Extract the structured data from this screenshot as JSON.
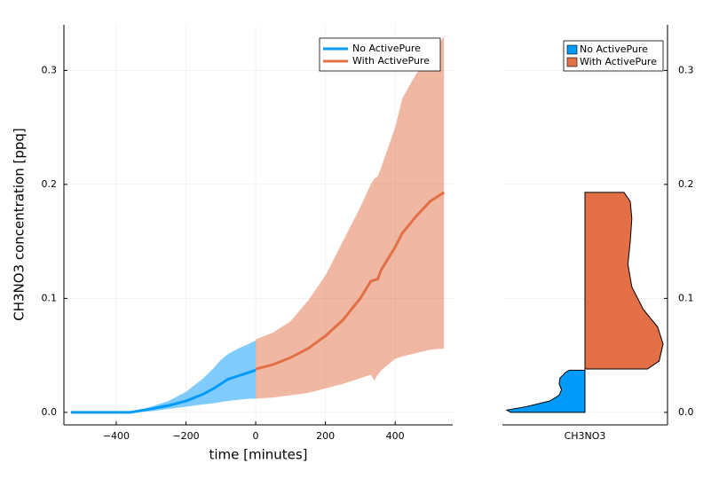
{
  "chart_data": [
    {
      "type": "line",
      "xlabel": "time [minutes]",
      "ylabel": "CH3NO3 concentration [ppq]",
      "xlim": [
        -550,
        565
      ],
      "ylim": [
        -0.011,
        0.34
      ],
      "xticks": [
        {
          "value": -400,
          "label": "−400"
        },
        {
          "value": -200,
          "label": "−200"
        },
        0,
        200,
        400
      ],
      "yticks": [
        {
          "value": 0,
          "label": "0.0"
        },
        0.1,
        0.2,
        0.3
      ],
      "grid": true,
      "legend": "top-right",
      "series": [
        {
          "name": "No ActivePure",
          "color": "#009af9",
          "x": [
            -530,
            -360,
            -300,
            -250,
            -200,
            -150,
            -120,
            -100,
            -80,
            -50,
            -20,
            0
          ],
          "values": [
            0,
            0,
            0.003,
            0.006,
            0.01,
            0.016,
            0.021,
            0.025,
            0.029,
            0.032,
            0.035,
            0.037
          ],
          "upper": [
            0,
            0,
            0.005,
            0.01,
            0.018,
            0.03,
            0.039,
            0.046,
            0.051,
            0.056,
            0.06,
            0.063
          ],
          "lower": [
            0,
            0,
            0.001,
            0.003,
            0.005,
            0.007,
            0.008,
            0.009,
            0.01,
            0.011,
            0.012,
            0.012
          ]
        },
        {
          "name": "With ActivePure",
          "color": "#e26f46",
          "x": [
            0,
            50,
            100,
            150,
            200,
            250,
            300,
            330,
            340,
            350,
            360,
            400,
            420,
            460,
            500,
            540
          ],
          "values": [
            0.038,
            0.042,
            0.048,
            0.056,
            0.067,
            0.081,
            0.1,
            0.115,
            0.116,
            0.117,
            0.125,
            0.145,
            0.157,
            0.172,
            0.185,
            0.193
          ],
          "upper": [
            0.064,
            0.07,
            0.08,
            0.098,
            0.12,
            0.15,
            0.18,
            0.2,
            0.205,
            0.207,
            0.215,
            0.25,
            0.275,
            0.297,
            0.31,
            0.33
          ],
          "lower": [
            0.012,
            0.013,
            0.015,
            0.017,
            0.021,
            0.025,
            0.03,
            0.033,
            0.028,
            0.033,
            0.037,
            0.047,
            0.049,
            0.052,
            0.055,
            0.056
          ]
        }
      ]
    },
    {
      "type": "violin",
      "categories": [
        "CH3NO3"
      ],
      "ylim": [
        -0.011,
        0.34
      ],
      "yticks": [
        {
          "value": 0,
          "label": "0.0"
        },
        0.1,
        0.2,
        0.3
      ],
      "grid": true,
      "legend": "top-right",
      "series": [
        {
          "name": "No ActivePure",
          "color": "#009af9",
          "side": "left",
          "y": [
            0,
            0.002,
            0.005,
            0.01,
            0.015,
            0.02,
            0.025,
            0.03,
            0.035,
            0.037
          ],
          "density": [
            0.95,
            1.0,
            0.75,
            0.45,
            0.33,
            0.3,
            0.33,
            0.32,
            0.25,
            0.2
          ]
        },
        {
          "name": "With ActivePure",
          "color": "#e26f46",
          "side": "right",
          "y": [
            0.038,
            0.045,
            0.06,
            0.075,
            0.09,
            0.11,
            0.13,
            0.15,
            0.17,
            0.185,
            0.193
          ],
          "density": [
            0.8,
            0.95,
            1.0,
            0.93,
            0.75,
            0.6,
            0.55,
            0.58,
            0.6,
            0.58,
            0.5
          ]
        }
      ]
    }
  ]
}
